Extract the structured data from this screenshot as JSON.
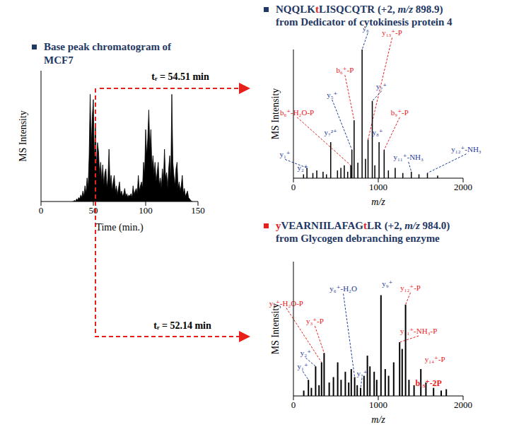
{
  "chart_data": [
    {
      "type": "area",
      "title": "Base peak chromatogram of MCF7",
      "xlabel": "Time  (min.)",
      "ylabel": "MS Intensity",
      "x": [
        30,
        31,
        32,
        33,
        34,
        35,
        36,
        37,
        38,
        39,
        40,
        41,
        42,
        43,
        44,
        45,
        46,
        47,
        48,
        49,
        50,
        51,
        52,
        53,
        54,
        55,
        56,
        57,
        58,
        59,
        60,
        61,
        62,
        63,
        64,
        65,
        66,
        67,
        68,
        69,
        70,
        71,
        72,
        73,
        74,
        75,
        76,
        77,
        78,
        79,
        80,
        81,
        82,
        83,
        84,
        85,
        86,
        87,
        88,
        89,
        90,
        91,
        92,
        93,
        94,
        95,
        96,
        97,
        98,
        99,
        100,
        101,
        102,
        103,
        104,
        105,
        106,
        107,
        108,
        109,
        110,
        111,
        112,
        113,
        114,
        115,
        116,
        117,
        118,
        119,
        120,
        121,
        122,
        123,
        124,
        125,
        126,
        127,
        128,
        129,
        130,
        131,
        132,
        133,
        134,
        135,
        136,
        137,
        138,
        139,
        140,
        141,
        142,
        143,
        144,
        145
      ],
      "values": [
        0,
        0,
        1,
        0,
        2,
        1,
        3,
        2,
        5,
        3,
        8,
        4,
        12,
        6,
        18,
        10,
        35,
        82,
        40,
        65,
        78,
        30,
        60,
        25,
        45,
        38,
        20,
        30,
        15,
        28,
        12,
        22,
        25,
        10,
        18,
        40,
        12,
        20,
        8,
        15,
        20,
        7,
        12,
        5,
        10,
        15,
        5,
        8,
        4,
        6,
        10,
        4,
        6,
        3,
        5,
        4,
        6,
        3,
        12,
        5,
        8,
        10,
        6,
        20,
        8,
        12,
        15,
        10,
        30,
        20,
        55,
        35,
        48,
        70,
        40,
        55,
        25,
        35,
        20,
        30,
        15,
        22,
        30,
        12,
        18,
        10,
        25,
        15,
        40,
        18,
        22,
        10,
        25,
        35,
        15,
        82,
        30,
        20,
        12,
        25,
        30,
        10,
        15,
        8,
        12,
        20,
        6,
        10,
        4,
        6,
        8,
        3,
        2,
        1,
        0,
        0
      ],
      "xlim": [
        0,
        150
      ],
      "xticks": [
        0,
        50,
        100,
        150
      ],
      "ylim": [
        0,
        100
      ],
      "yticks": [],
      "tick_labels": "x",
      "color": "#000000",
      "annotations": [
        "tᵣ = 54.51 min",
        "tᵣ = 52.14 min"
      ]
    },
    {
      "type": "bar",
      "title": "NQQLKtLISQCQTR (+2, m/z 898.9)",
      "subtitle": "from Dedicator of cytokinesis protein 4",
      "xlabel": "m/z",
      "ylabel": "MS Intensity",
      "x": [
        120,
        160,
        230,
        276,
        350,
        390,
        440,
        520,
        560,
        600,
        640,
        676,
        690,
        716,
        760,
        810,
        850,
        880,
        930,
        960,
        1010,
        1070,
        1120,
        1200,
        1290,
        1390,
        1480,
        1580,
        1700
      ],
      "values": [
        3,
        8,
        4,
        6,
        5,
        3,
        28,
        6,
        8,
        10,
        5,
        10,
        22,
        45,
        12,
        100,
        15,
        30,
        60,
        10,
        28,
        22,
        6,
        8,
        4,
        5,
        3,
        4,
        2
      ],
      "peak_labels": [
        null,
        "y₁⁺",
        null,
        "y₂⁺",
        null,
        null,
        "y₇²⁺",
        null,
        null,
        null,
        null,
        "b₆⁺-H₂O-P",
        "y₅⁺",
        "b₆⁺-P",
        null,
        "y₆⁺",
        null,
        "y₁₃⁺-P",
        "y₇⁺",
        null,
        "y₈⁺",
        "b₉⁺-P",
        null,
        null,
        null,
        "y₁₁⁺-NH₃",
        null,
        "y₁₂⁺-NH₃",
        null
      ],
      "xlim": [
        0,
        2000
      ],
      "xticks": [
        0,
        1000,
        2000
      ],
      "ylim": [
        0,
        100
      ],
      "yticks": [],
      "tick_labels": "x",
      "color": "#000000"
    },
    {
      "type": "bar",
      "title": "yVEARNIILAFAGtLR (+2, m/z 984.0)",
      "subtitle": "from Glycogen debranching enzyme",
      "xlabel": "m/z",
      "ylabel": "MS Intensity",
      "x": [
        120,
        175,
        210,
        260,
        300,
        330,
        360,
        420,
        470,
        520,
        560,
        610,
        650,
        680,
        720,
        750,
        790,
        830,
        870,
        900,
        950,
        980,
        1030,
        1080,
        1120,
        1180,
        1250,
        1280,
        1320,
        1360,
        1420,
        1500,
        1560,
        1650,
        1740,
        1800
      ],
      "values": [
        4,
        12,
        6,
        22,
        8,
        25,
        32,
        10,
        14,
        25,
        12,
        18,
        10,
        20,
        14,
        8,
        6,
        15,
        30,
        22,
        18,
        12,
        75,
        20,
        15,
        25,
        40,
        35,
        68,
        12,
        8,
        20,
        10,
        6,
        4,
        5
      ],
      "peak_labels": [
        null,
        "y₁⁺",
        null,
        "y₂⁺",
        null,
        "y₃⁺-H₂O-P",
        "y₃⁺-P",
        null,
        null,
        null,
        null,
        null,
        null,
        null,
        "y₆⁺-H₂O",
        null,
        "y₇⁺",
        null,
        null,
        null,
        null,
        null,
        "y₉⁺",
        null,
        null,
        null,
        "y₁₁⁺-NH₃-P",
        null,
        "y₁₂⁺-P",
        null,
        null,
        "y₁₄⁺-P",
        null,
        null,
        null,
        "b₁₅⁺-2P"
      ],
      "xlim": [
        0,
        2000
      ],
      "xticks": [
        0,
        1000,
        2000
      ],
      "ylim": [
        0,
        100
      ],
      "yticks": [],
      "tick_labels": "x",
      "color": "#000000"
    }
  ]
}
